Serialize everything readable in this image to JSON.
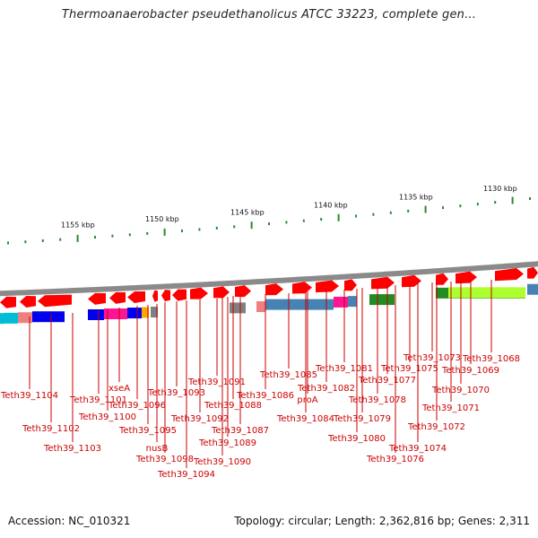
{
  "title": "Thermoanaerobacter pseudethanolicus ATCC 33223, complete gen...",
  "footer": {
    "accession": "Accession: NC_010321",
    "summary": "Topology: circular; Length: 2,362,816 bp; Genes: 2,311"
  },
  "scale": {
    "labels": [
      "1155 kbp",
      "1150 kbp",
      "1145 kbp",
      "1140 kbp",
      "1135 kbp",
      "1130 kbp"
    ],
    "tick_color": "#2a8a2a"
  },
  "colors": {
    "forward_gene": "#ff0000",
    "backbone": "#8a8a8a",
    "cog_track": [
      "#00bcd4",
      "#f08080",
      "#0000ee",
      "#ff1493",
      "#ffa500",
      "#4682b4",
      "#808080",
      "#228b22",
      "#adff2f",
      "#2e8b57"
    ],
    "label_color": "#cc0000"
  },
  "genes": [
    "Teth39_1104",
    "Teth39_1102",
    "Teth39_1103",
    "Teth39_1101",
    "Teth39_1100",
    "xseA",
    "Teth39_1096",
    "Teth39_1095",
    "nusB",
    "Teth39_1098",
    "Teth39_1093",
    "Teth39_1094",
    "Teth39_1092",
    "Teth39_1091",
    "Teth39_1090",
    "Teth39_1089",
    "Teth39_1088",
    "Teth39_1087",
    "Teth39_1086",
    "Teth39_1085",
    "Teth39_1084",
    "proA",
    "Teth39_1082",
    "Teth39_1081",
    "Teth39_1080",
    "Teth39_1079",
    "Teth39_1078",
    "Teth39_1077",
    "Teth39_1076",
    "Teth39_1075",
    "Teth39_1074",
    "Teth39_1073",
    "Teth39_1072",
    "Teth39_1071",
    "Teth39_1070",
    "Teth39_1069",
    "Teth39_1068"
  ]
}
